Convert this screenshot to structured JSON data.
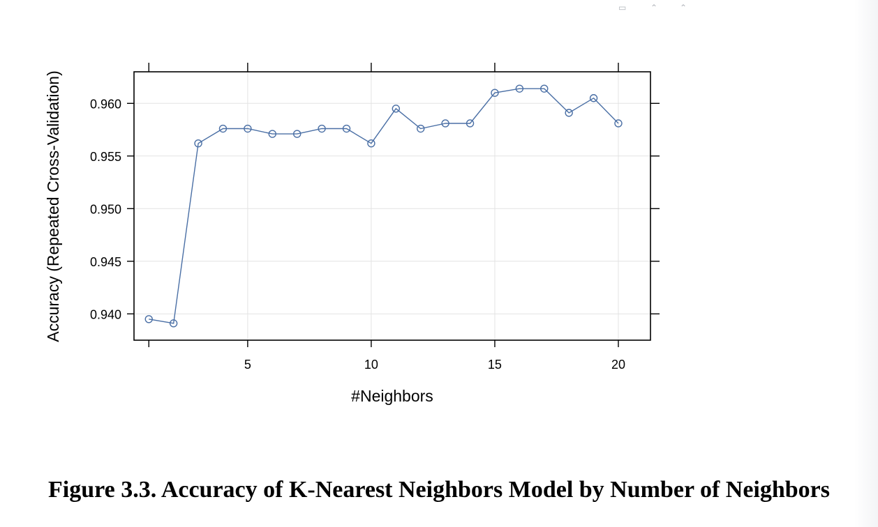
{
  "toolbar_icons": [
    "resize-icon",
    "chevron-up-icon",
    "chevron-up-icon"
  ],
  "caption": "Figure 3.3. Accuracy of K-Nearest Neighbors Model by Number of Neighbors",
  "chart_data": {
    "type": "line",
    "title": "",
    "xlabel": "#Neighbors",
    "ylabel": "Accuracy (Repeated Cross-Validation)",
    "xlim": [
      0.4,
      21.3
    ],
    "ylim": [
      0.9375,
      0.963
    ],
    "x_ticks": [
      5,
      10,
      15,
      20
    ],
    "y_ticks": [
      0.94,
      0.945,
      0.95,
      0.955,
      0.96
    ],
    "x_tick_labels": [
      "5",
      "10",
      "15",
      "20"
    ],
    "y_tick_labels": [
      "0.940",
      "0.945",
      "0.950",
      "0.955",
      "0.960"
    ],
    "grid": true,
    "marker": "open-circle",
    "line_color": "#4a6fa5",
    "series": [
      {
        "x": [
          1,
          2,
          3,
          4,
          5,
          6,
          7,
          8,
          9,
          10,
          11,
          12,
          13,
          14,
          15,
          16,
          17,
          18,
          19,
          20
        ],
        "values": [
          0.9395,
          0.9391,
          0.9562,
          0.9576,
          0.9576,
          0.9571,
          0.9571,
          0.9576,
          0.9576,
          0.9562,
          0.9595,
          0.9576,
          0.9581,
          0.9581,
          0.961,
          0.9614,
          0.9614,
          0.9591,
          0.9605,
          0.9581
        ]
      }
    ]
  }
}
